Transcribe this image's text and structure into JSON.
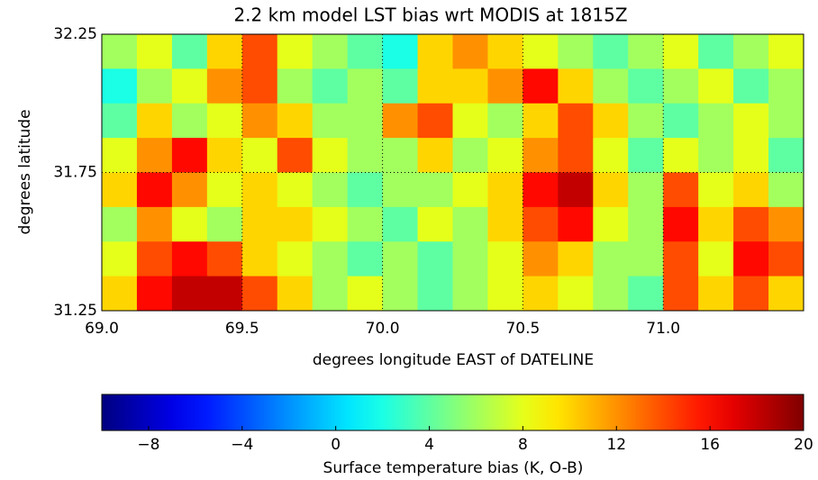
{
  "chart_data": {
    "type": "heatmap",
    "title": "2.2 km model LST bias wrt MODIS at 1815Z",
    "xlabel": "degrees longitude EAST of DATELINE",
    "ylabel": "degrees latitude",
    "xlim": [
      69.0,
      71.5
    ],
    "ylim": [
      31.25,
      32.25
    ],
    "xticks": [
      {
        "value": 69.0,
        "label": "69.0"
      },
      {
        "value": 69.5,
        "label": "69.5"
      },
      {
        "value": 70.0,
        "label": "70.0"
      },
      {
        "value": 70.5,
        "label": "70.5"
      },
      {
        "value": 71.0,
        "label": "71.0"
      }
    ],
    "yticks": [
      31.25,
      31.75,
      32.25
    ],
    "grid": true,
    "colormap": "jet",
    "z": [
      [
        6,
        8,
        4,
        10,
        14,
        8,
        6,
        4,
        2,
        10,
        12,
        10,
        8,
        6,
        4,
        6,
        8,
        4,
        6,
        8
      ],
      [
        2,
        6,
        8,
        12,
        14,
        6,
        4,
        6,
        4,
        10,
        10,
        12,
        16,
        10,
        6,
        4,
        6,
        8,
        4,
        6
      ],
      [
        4,
        10,
        6,
        8,
        12,
        10,
        6,
        6,
        12,
        14,
        8,
        6,
        10,
        14,
        10,
        6,
        4,
        6,
        8,
        6
      ],
      [
        8,
        12,
        16,
        10,
        8,
        14,
        8,
        6,
        6,
        10,
        6,
        8,
        12,
        14,
        8,
        4,
        8,
        6,
        8,
        4
      ],
      [
        10,
        16,
        12,
        8,
        10,
        8,
        6,
        4,
        6,
        6,
        8,
        10,
        16,
        18,
        10,
        6,
        14,
        8,
        10,
        6
      ],
      [
        6,
        12,
        8,
        6,
        10,
        10,
        8,
        6,
        4,
        8,
        6,
        10,
        14,
        16,
        8,
        6,
        16,
        10,
        14,
        12
      ],
      [
        8,
        14,
        16,
        14,
        10,
        8,
        6,
        4,
        6,
        4,
        6,
        8,
        12,
        10,
        6,
        6,
        14,
        8,
        16,
        14
      ],
      [
        10,
        16,
        18,
        18,
        14,
        10,
        6,
        8,
        6,
        4,
        6,
        8,
        10,
        8,
        6,
        4,
        14,
        10,
        14,
        10
      ]
    ],
    "colorbar": {
      "label": "Surface temperature bias (K, O-B)",
      "lim": [
        -10,
        20
      ],
      "ticks": [
        {
          "value": -8,
          "label": "−8"
        },
        {
          "value": -4,
          "label": "−4"
        },
        0,
        4,
        8,
        12,
        16,
        20
      ]
    }
  }
}
